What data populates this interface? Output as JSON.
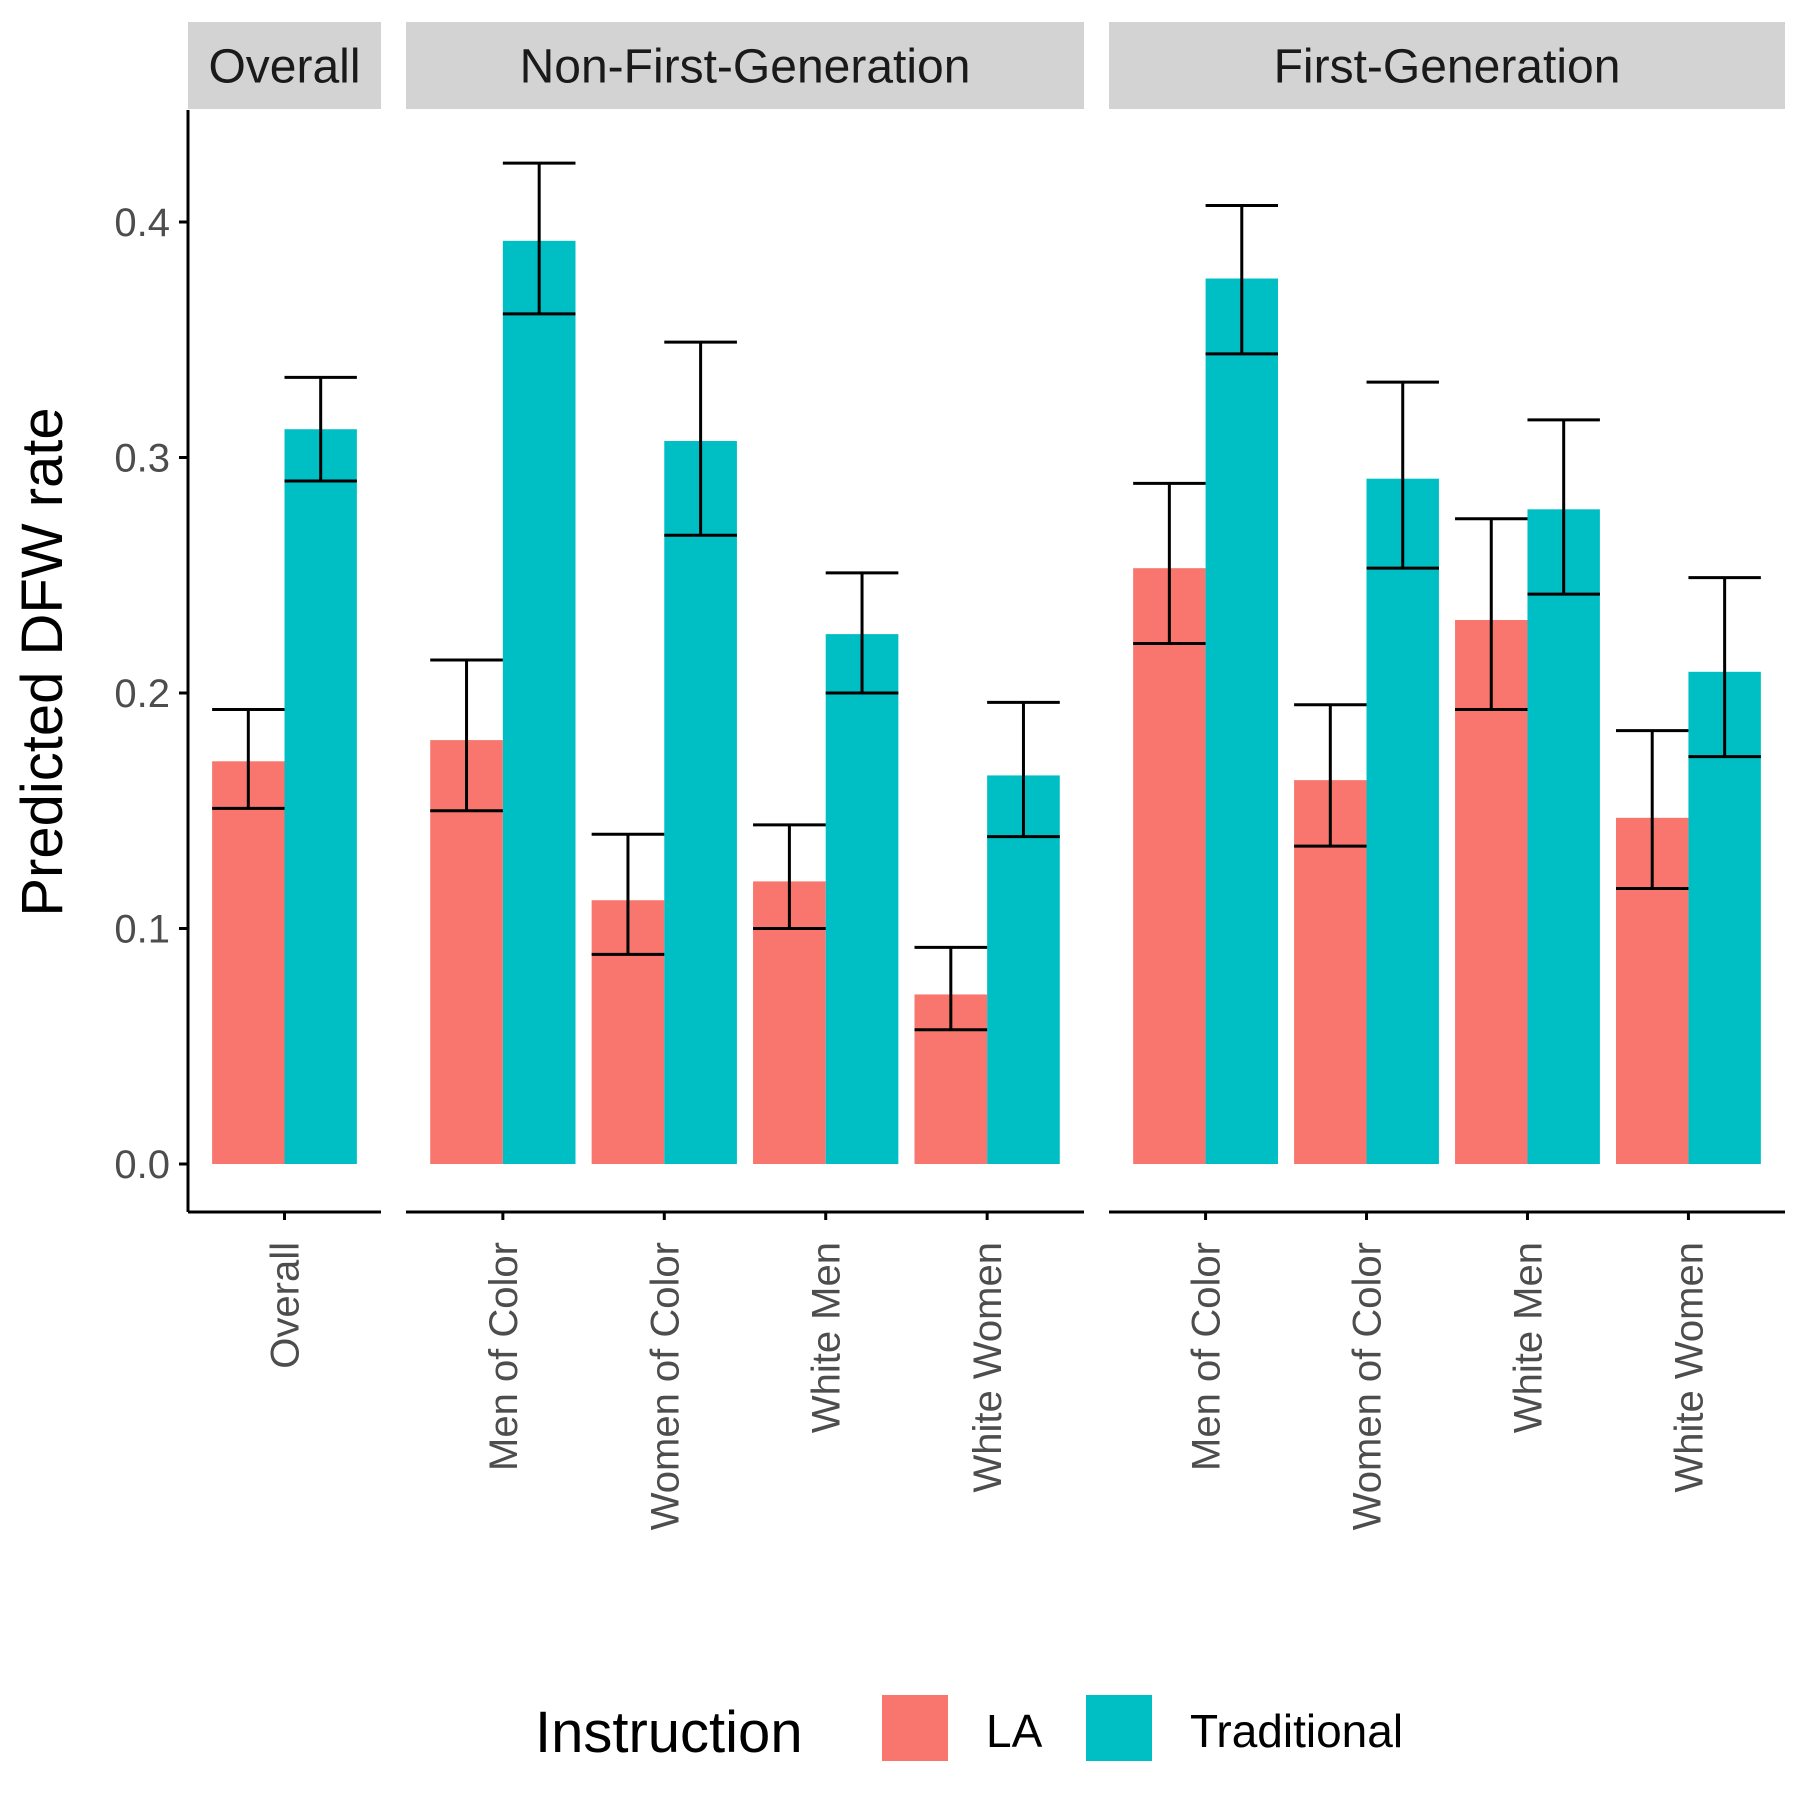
{
  "chart_data": {
    "type": "bar",
    "ylabel": "Predicted DFW rate",
    "xlabel": "",
    "ylim": [
      -0.02,
      0.445
    ],
    "yticks": [
      0.0,
      0.1,
      0.2,
      0.3,
      0.4
    ],
    "ytick_labels": [
      "0.0",
      "0.1",
      "0.2",
      "0.3",
      "0.4"
    ],
    "grid": false,
    "legend": {
      "title": "Instruction",
      "position": "bottom",
      "items": [
        {
          "label": "LA",
          "color": "#F8766D"
        },
        {
          "label": "Traditional",
          "color": "#00BFC4"
        }
      ]
    },
    "panels": [
      {
        "title": "Overall",
        "categories": [
          "Overall"
        ],
        "series": [
          {
            "name": "LA",
            "values": [
              0.171
            ],
            "lower": [
              0.151
            ],
            "upper": [
              0.193
            ]
          },
          {
            "name": "Traditional",
            "values": [
              0.312
            ],
            "lower": [
              0.29
            ],
            "upper": [
              0.334
            ]
          }
        ]
      },
      {
        "title": "Non-First-Generation",
        "categories": [
          "Men of Color",
          "Women of Color",
          "White Men",
          "White Women"
        ],
        "series": [
          {
            "name": "LA",
            "values": [
              0.18,
              0.112,
              0.12,
              0.072
            ],
            "lower": [
              0.15,
              0.089,
              0.1,
              0.057
            ],
            "upper": [
              0.214,
              0.14,
              0.144,
              0.092
            ]
          },
          {
            "name": "Traditional",
            "values": [
              0.392,
              0.307,
              0.225,
              0.165
            ],
            "lower": [
              0.361,
              0.267,
              0.2,
              0.139
            ],
            "upper": [
              0.425,
              0.349,
              0.251,
              0.196
            ]
          }
        ]
      },
      {
        "title": "First-Generation",
        "categories": [
          "Men of Color",
          "Women of Color",
          "White Men",
          "White Women"
        ],
        "series": [
          {
            "name": "LA",
            "values": [
              0.253,
              0.163,
              0.231,
              0.147
            ],
            "lower": [
              0.221,
              0.135,
              0.193,
              0.117
            ],
            "upper": [
              0.289,
              0.195,
              0.274,
              0.184
            ]
          },
          {
            "name": "Traditional",
            "values": [
              0.376,
              0.291,
              0.278,
              0.209
            ],
            "lower": [
              0.344,
              0.253,
              0.242,
              0.173
            ],
            "upper": [
              0.407,
              0.332,
              0.316,
              0.249
            ]
          }
        ]
      }
    ]
  }
}
